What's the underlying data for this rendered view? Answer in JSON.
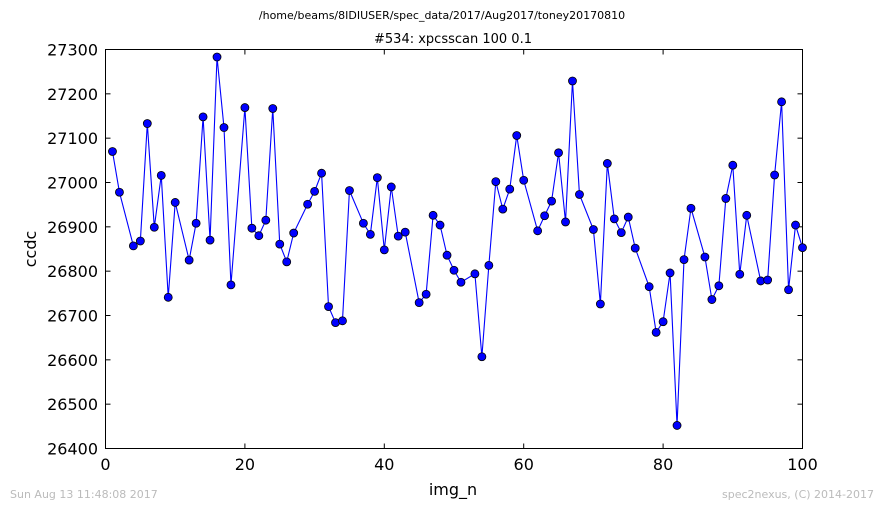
{
  "suptitle": "/home/beams/8IDIUSER/spec_data/2017/Aug2017/toney20170810",
  "footer_left": "Sun Aug 13 11:48:08 2017",
  "footer_right": "spec2nexus, (C) 2014-2017",
  "chart_data": {
    "type": "line",
    "title": "#534: xpcsscan 100 0.1",
    "xlabel": "img_n",
    "ylabel": "ccdc",
    "xlim": [
      0,
      100
    ],
    "ylim": [
      26400,
      27300
    ],
    "xticks": [
      "0",
      "20",
      "40",
      "60",
      "80",
      "100"
    ],
    "yticks": [
      "26400",
      "26500",
      "26600",
      "26700",
      "26800",
      "26900",
      "27000",
      "27100",
      "27200",
      "27300"
    ],
    "grid": false,
    "colors": {
      "line": "#0000ff",
      "marker": "#0000ff"
    },
    "series": [
      {
        "x": [
          1,
          2,
          4,
          5,
          6,
          7,
          8,
          9,
          10,
          12,
          13,
          14,
          15,
          16,
          17,
          18,
          20,
          21,
          22,
          23,
          24,
          25,
          26,
          27,
          29,
          30,
          31,
          32,
          33,
          34,
          35,
          37,
          38,
          39,
          40,
          41,
          42,
          43,
          45,
          46,
          47,
          48,
          49,
          50,
          51,
          53,
          54,
          55,
          56,
          57,
          58,
          59,
          60,
          62,
          63,
          64,
          65,
          66,
          67,
          68,
          70,
          71,
          72,
          73,
          74,
          75,
          76,
          78,
          79,
          80,
          81,
          82,
          83,
          84,
          86,
          87,
          88,
          89,
          90,
          91,
          92,
          94,
          95,
          96,
          97,
          98,
          99,
          100
        ],
        "y": [
          27070,
          26978,
          26857,
          26868,
          27133,
          26899,
          27016,
          26741,
          26955,
          26825,
          26908,
          27148,
          26870,
          27283,
          27124,
          26769,
          27169,
          26897,
          26880,
          26915,
          27167,
          26861,
          26821,
          26886,
          26951,
          26980,
          27021,
          26720,
          26684,
          26688,
          26982,
          26908,
          26883,
          27011,
          26848,
          26990,
          26879,
          26888,
          26729,
          26748,
          26926,
          26904,
          26836,
          26802,
          26775,
          26794,
          26607,
          26813,
          27002,
          26940,
          26985,
          27106,
          27005,
          26891,
          26925,
          26958,
          27067,
          26911,
          27229,
          26973,
          26894,
          26726,
          27043,
          26918,
          26887,
          26922,
          26852,
          26765,
          26662,
          26686,
          26796,
          26452,
          26826,
          26942,
          26832,
          26736,
          26767,
          26964,
          27039,
          26793,
          26926,
          26778,
          26780,
          27017,
          27182,
          26758,
          26904,
          26853
        ]
      }
    ]
  }
}
